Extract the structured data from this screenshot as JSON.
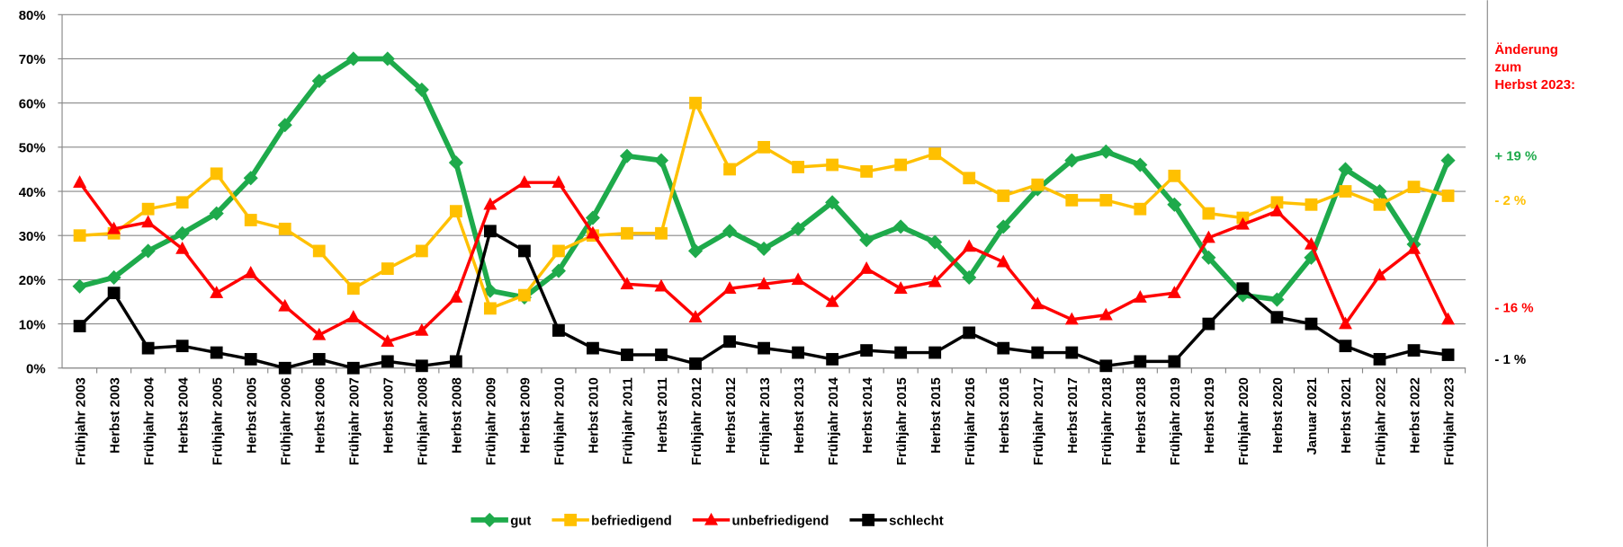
{
  "chart_data": {
    "type": "line",
    "categories": [
      "Frühjahr 2003",
      "Herbst 2003",
      "Frühjahr 2004",
      "Herbst 2004",
      "Frühjahr 2005",
      "Herbst 2005",
      "Frühjahr 2006",
      "Herbst 2006",
      "Frühjahr 2007",
      "Herbst 2007",
      "Frühjahr 2008",
      "Herbst 2008",
      "Frühjahr 2009",
      "Herbst 2009",
      "Frühjahr 2010",
      "Herbst 2010",
      "Frühjahr 2011",
      "Herbst 2011",
      "Frühjahr 2012",
      "Herbst 2012",
      "Frühjahr 2013",
      "Herbst 2013",
      "Frühjahr 2014",
      "Herbst 2014",
      "Frühjahr 2015",
      "Herbst 2015",
      "Frühjahr 2016",
      "Herbst 2016",
      "Frühjahr 2017",
      "Herbst 2017",
      "Frühjahr 2018",
      "Herbst 2018",
      "Frühjahr 2019",
      "Herbst 2019",
      "Frühjahr 2020",
      "Herbst 2020",
      "Januar 2021",
      "Herbst 2021",
      "Frühjahr 2022",
      "Herbst 2022",
      "Frühjahr 2023"
    ],
    "series": [
      {
        "name": "gut",
        "color": "#1eaa4b",
        "marker": "diamond",
        "values": [
          18.5,
          20.5,
          26.5,
          30.5,
          35,
          43,
          55,
          65,
          70,
          70,
          63,
          46.5,
          17.5,
          16,
          22,
          34,
          48,
          47,
          26.5,
          31,
          27,
          31.5,
          37.5,
          29,
          32,
          28.5,
          20.5,
          32,
          40.5,
          47,
          49,
          46,
          37,
          25,
          16.5,
          15.5,
          25,
          45,
          40,
          28,
          47
        ]
      },
      {
        "name": "befriedigend",
        "color": "#ffc000",
        "marker": "square",
        "values": [
          30,
          30.5,
          36,
          37.5,
          44,
          33.5,
          31.5,
          26.5,
          18,
          22.5,
          26.5,
          35.5,
          13.5,
          16.5,
          26.5,
          30,
          30.5,
          30.5,
          60,
          45,
          50,
          45.5,
          46,
          44.5,
          46,
          48.5,
          43,
          39,
          41.5,
          38,
          38,
          36,
          43.5,
          35,
          34,
          37.5,
          37,
          40,
          37,
          41,
          39
        ]
      },
      {
        "name": "unbefriedigend",
        "color": "#ff0000",
        "marker": "triangle",
        "values": [
          42,
          31.5,
          33,
          27,
          17,
          21.5,
          14,
          7.5,
          11.5,
          6,
          8.5,
          16,
          37,
          42,
          42,
          30.5,
          19,
          18.5,
          11.5,
          18,
          19,
          20,
          15,
          22.5,
          18,
          19.5,
          27.5,
          24,
          14.5,
          11,
          12,
          16,
          17,
          29.5,
          32.5,
          35.5,
          28,
          10,
          21,
          27,
          11
        ]
      },
      {
        "name": "schlecht",
        "color": "#000000",
        "marker": "square",
        "values": [
          9.5,
          17,
          4.5,
          5,
          3.5,
          2,
          0,
          2,
          0,
          1.5,
          0.5,
          1.5,
          31,
          26.5,
          8.5,
          4.5,
          3,
          3,
          1,
          6,
          4.5,
          3.5,
          2,
          4,
          3.5,
          3.5,
          8,
          4.5,
          3.5,
          3.5,
          0.5,
          1.5,
          1.5,
          10,
          18,
          11.5,
          10,
          5,
          2,
          4,
          3
        ]
      }
    ],
    "ylim": [
      0,
      80
    ],
    "yticks": [
      {
        "value": 0,
        "label": "0%"
      },
      {
        "value": 10,
        "label": "10%"
      },
      {
        "value": 20,
        "label": "20%"
      },
      {
        "value": 30,
        "label": "30%"
      },
      {
        "value": 40,
        "label": "40%"
      },
      {
        "value": 50,
        "label": "50%"
      },
      {
        "value": 60,
        "label": "60%"
      },
      {
        "value": 70,
        "label": "70%"
      },
      {
        "value": 80,
        "label": "80%"
      }
    ],
    "grid": true,
    "legend": "bottom",
    "annotation_title": {
      "lines": [
        "Änderung",
        "zum",
        "Herbst 2023:"
      ],
      "color": "#ff0000"
    },
    "annotations": [
      {
        "text": "+ 19 %",
        "color": "#1eaa4b"
      },
      {
        "text": "- 2 %",
        "color": "#ffc000"
      },
      {
        "text": "- 16 %",
        "color": "#ff0000"
      },
      {
        "text": "- 1 %",
        "color": "#000000"
      }
    ]
  }
}
